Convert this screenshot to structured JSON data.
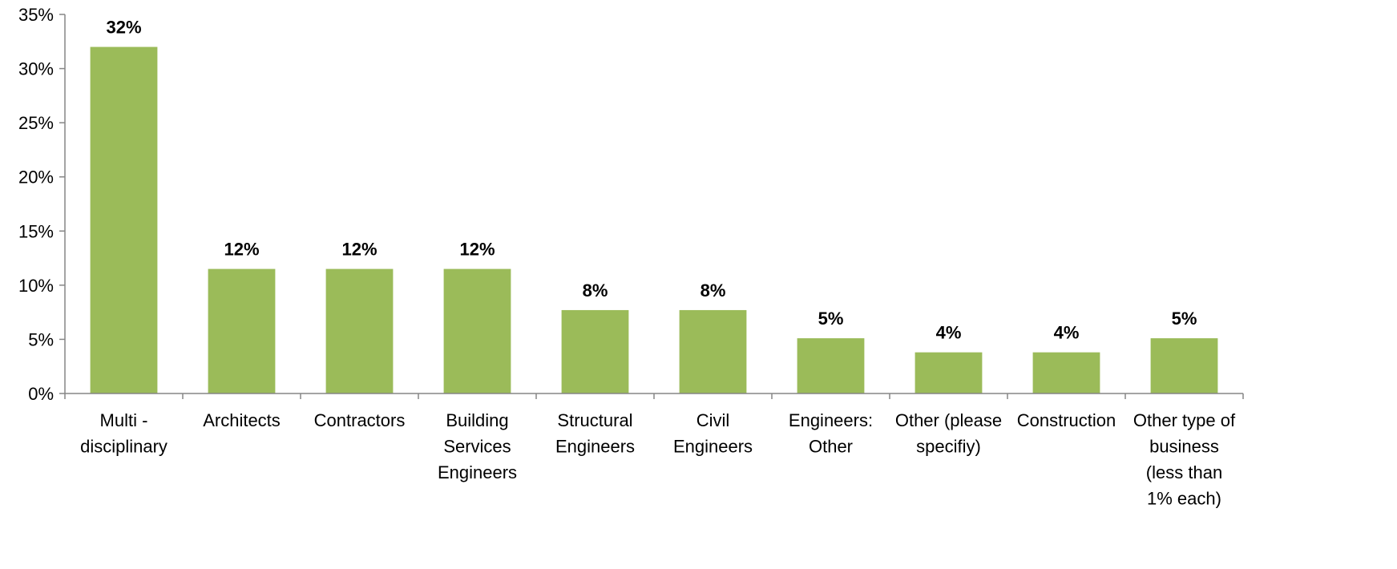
{
  "chart_data": {
    "type": "bar",
    "title": "",
    "xlabel": "",
    "ylabel": "",
    "ylim": [
      0,
      35
    ],
    "yticks": [
      0,
      5,
      10,
      15,
      20,
      25,
      30,
      35
    ],
    "ytick_labels": [
      "0%",
      "5%",
      "10%",
      "15%",
      "20%",
      "25%",
      "30%",
      "35%"
    ],
    "grid": false,
    "legend": "none",
    "bar_color": "#9BBB59",
    "categories": [
      [
        "Multi -",
        "disciplinary"
      ],
      [
        "Architects"
      ],
      [
        "Contractors"
      ],
      [
        "Building",
        "Services",
        "Engineers"
      ],
      [
        "Structural",
        "Engineers"
      ],
      [
        "Civil",
        "Engineers"
      ],
      [
        "Engineers:",
        "Other"
      ],
      [
        "Other (please",
        "specifiy)"
      ],
      [
        "Construction"
      ],
      [
        "Other type of",
        "business",
        "(less than",
        "1% each)"
      ]
    ],
    "values": [
      32,
      11.5,
      11.5,
      11.5,
      7.7,
      7.7,
      5.1,
      3.8,
      3.8,
      5.1
    ],
    "data_labels": [
      "32%",
      "12%",
      "12%",
      "12%",
      "8%",
      "8%",
      "5%",
      "4%",
      "4%",
      "5%"
    ]
  }
}
